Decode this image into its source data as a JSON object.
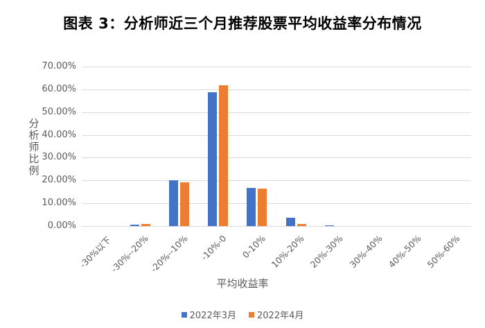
{
  "chart_data": {
    "type": "bar",
    "title": "图表 3：分析师近三个月推荐股票平均收益率分布情况",
    "xlabel": "平均收益率",
    "ylabel": "分析师比例",
    "ylim": [
      0,
      70
    ],
    "yticks": [
      "0.00%",
      "10.00%",
      "20.00%",
      "30.00%",
      "40.00%",
      "50.00%",
      "60.00%",
      "70.00%"
    ],
    "grid": true,
    "legend_position": "bottom",
    "categories": [
      "-30%以下",
      "-30%--20%",
      "-20%--10%",
      "-10%-0",
      "0-10%",
      "10%-20%",
      "20%-30%",
      "30%-40%",
      "40%-50%",
      "50%-60%"
    ],
    "series": [
      {
        "name": "2022年3月",
        "color": "#4472C4",
        "values": [
          0.0,
          0.6,
          20.0,
          58.7,
          16.7,
          3.6,
          0.4,
          0.0,
          0.0,
          0.0
        ]
      },
      {
        "name": "2022年4月",
        "color": "#ED7D31",
        "values": [
          0.0,
          0.9,
          19.2,
          61.7,
          16.4,
          1.0,
          0.0,
          0.0,
          0.0,
          0.0
        ]
      }
    ]
  }
}
